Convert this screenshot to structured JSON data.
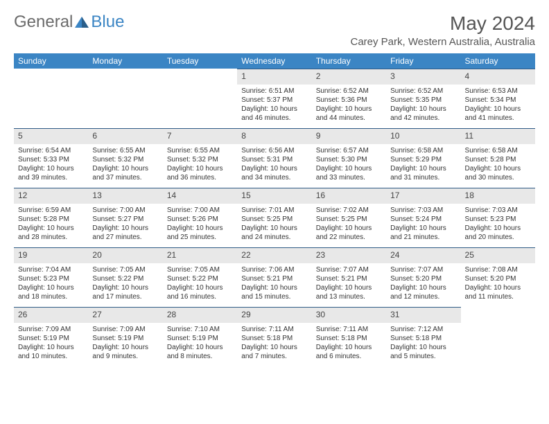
{
  "logo": {
    "text1": "General",
    "text2": "Blue"
  },
  "title": "May 2024",
  "location": "Carey Park, Western Australia, Australia",
  "colors": {
    "header_bg": "#3b85c4",
    "header_fg": "#ffffff",
    "daynum_bg": "#e8e8e8",
    "daynum_border": "#2e5a85",
    "text": "#333333",
    "logo_gray": "#6a6a6a",
    "logo_blue": "#3b85c4"
  },
  "day_headers": [
    "Sunday",
    "Monday",
    "Tuesday",
    "Wednesday",
    "Thursday",
    "Friday",
    "Saturday"
  ],
  "weeks": [
    [
      null,
      null,
      null,
      {
        "n": "1",
        "sunrise": "6:51 AM",
        "sunset": "5:37 PM",
        "daylight": "10 hours and 46 minutes."
      },
      {
        "n": "2",
        "sunrise": "6:52 AM",
        "sunset": "5:36 PM",
        "daylight": "10 hours and 44 minutes."
      },
      {
        "n": "3",
        "sunrise": "6:52 AM",
        "sunset": "5:35 PM",
        "daylight": "10 hours and 42 minutes."
      },
      {
        "n": "4",
        "sunrise": "6:53 AM",
        "sunset": "5:34 PM",
        "daylight": "10 hours and 41 minutes."
      }
    ],
    [
      {
        "n": "5",
        "sunrise": "6:54 AM",
        "sunset": "5:33 PM",
        "daylight": "10 hours and 39 minutes."
      },
      {
        "n": "6",
        "sunrise": "6:55 AM",
        "sunset": "5:32 PM",
        "daylight": "10 hours and 37 minutes."
      },
      {
        "n": "7",
        "sunrise": "6:55 AM",
        "sunset": "5:32 PM",
        "daylight": "10 hours and 36 minutes."
      },
      {
        "n": "8",
        "sunrise": "6:56 AM",
        "sunset": "5:31 PM",
        "daylight": "10 hours and 34 minutes."
      },
      {
        "n": "9",
        "sunrise": "6:57 AM",
        "sunset": "5:30 PM",
        "daylight": "10 hours and 33 minutes."
      },
      {
        "n": "10",
        "sunrise": "6:58 AM",
        "sunset": "5:29 PM",
        "daylight": "10 hours and 31 minutes."
      },
      {
        "n": "11",
        "sunrise": "6:58 AM",
        "sunset": "5:28 PM",
        "daylight": "10 hours and 30 minutes."
      }
    ],
    [
      {
        "n": "12",
        "sunrise": "6:59 AM",
        "sunset": "5:28 PM",
        "daylight": "10 hours and 28 minutes."
      },
      {
        "n": "13",
        "sunrise": "7:00 AM",
        "sunset": "5:27 PM",
        "daylight": "10 hours and 27 minutes."
      },
      {
        "n": "14",
        "sunrise": "7:00 AM",
        "sunset": "5:26 PM",
        "daylight": "10 hours and 25 minutes."
      },
      {
        "n": "15",
        "sunrise": "7:01 AM",
        "sunset": "5:25 PM",
        "daylight": "10 hours and 24 minutes."
      },
      {
        "n": "16",
        "sunrise": "7:02 AM",
        "sunset": "5:25 PM",
        "daylight": "10 hours and 22 minutes."
      },
      {
        "n": "17",
        "sunrise": "7:03 AM",
        "sunset": "5:24 PM",
        "daylight": "10 hours and 21 minutes."
      },
      {
        "n": "18",
        "sunrise": "7:03 AM",
        "sunset": "5:23 PM",
        "daylight": "10 hours and 20 minutes."
      }
    ],
    [
      {
        "n": "19",
        "sunrise": "7:04 AM",
        "sunset": "5:23 PM",
        "daylight": "10 hours and 18 minutes."
      },
      {
        "n": "20",
        "sunrise": "7:05 AM",
        "sunset": "5:22 PM",
        "daylight": "10 hours and 17 minutes."
      },
      {
        "n": "21",
        "sunrise": "7:05 AM",
        "sunset": "5:22 PM",
        "daylight": "10 hours and 16 minutes."
      },
      {
        "n": "22",
        "sunrise": "7:06 AM",
        "sunset": "5:21 PM",
        "daylight": "10 hours and 15 minutes."
      },
      {
        "n": "23",
        "sunrise": "7:07 AM",
        "sunset": "5:21 PM",
        "daylight": "10 hours and 13 minutes."
      },
      {
        "n": "24",
        "sunrise": "7:07 AM",
        "sunset": "5:20 PM",
        "daylight": "10 hours and 12 minutes."
      },
      {
        "n": "25",
        "sunrise": "7:08 AM",
        "sunset": "5:20 PM",
        "daylight": "10 hours and 11 minutes."
      }
    ],
    [
      {
        "n": "26",
        "sunrise": "7:09 AM",
        "sunset": "5:19 PM",
        "daylight": "10 hours and 10 minutes."
      },
      {
        "n": "27",
        "sunrise": "7:09 AM",
        "sunset": "5:19 PM",
        "daylight": "10 hours and 9 minutes."
      },
      {
        "n": "28",
        "sunrise": "7:10 AM",
        "sunset": "5:19 PM",
        "daylight": "10 hours and 8 minutes."
      },
      {
        "n": "29",
        "sunrise": "7:11 AM",
        "sunset": "5:18 PM",
        "daylight": "10 hours and 7 minutes."
      },
      {
        "n": "30",
        "sunrise": "7:11 AM",
        "sunset": "5:18 PM",
        "daylight": "10 hours and 6 minutes."
      },
      {
        "n": "31",
        "sunrise": "7:12 AM",
        "sunset": "5:18 PM",
        "daylight": "10 hours and 5 minutes."
      },
      null
    ]
  ],
  "labels": {
    "sunrise": "Sunrise: ",
    "sunset": "Sunset: ",
    "daylight": "Daylight: "
  }
}
